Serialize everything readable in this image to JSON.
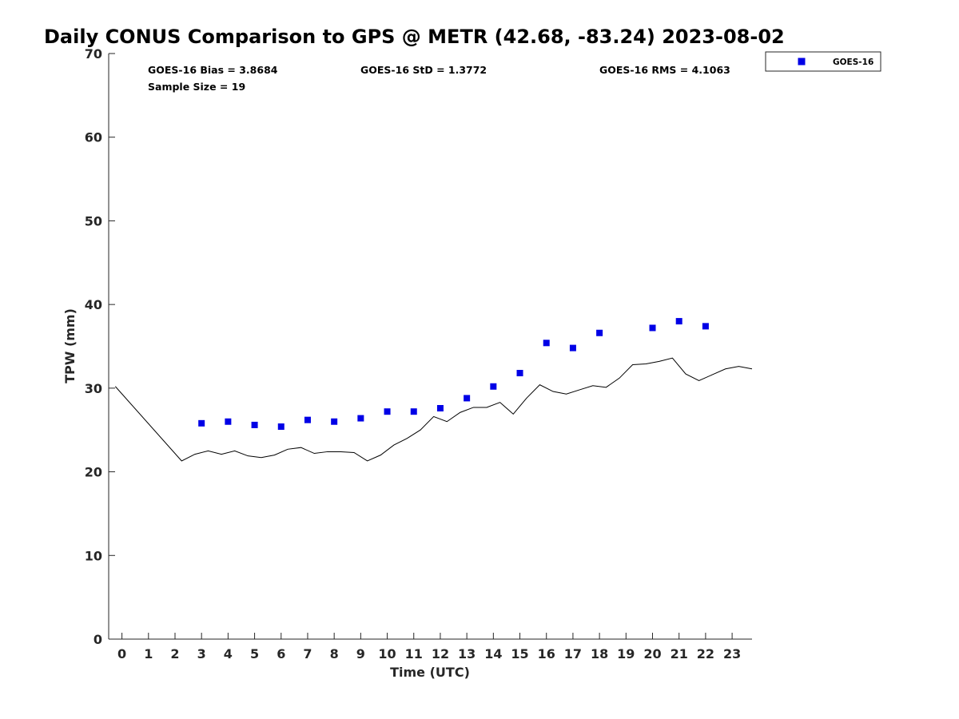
{
  "chart_data": {
    "type": "scatter",
    "title": "Daily CONUS Comparison to GPS @ METR (42.68, -83.24) 2023-08-02",
    "xlabel": "Time (UTC)",
    "ylabel": "TPW (mm)",
    "xlim": [
      -0.5,
      23.75
    ],
    "ylim": [
      0,
      70
    ],
    "x_ticks": [
      0,
      1,
      2,
      3,
      4,
      5,
      6,
      7,
      8,
      9,
      10,
      11,
      12,
      13,
      14,
      15,
      16,
      17,
      18,
      19,
      20,
      21,
      22,
      23
    ],
    "y_ticks": [
      0,
      10,
      20,
      30,
      40,
      50,
      60,
      70
    ],
    "grid": false,
    "legend_position": "top-right-outside",
    "stats": {
      "bias": "GOES-16 Bias = 3.8684",
      "std": "GOES-16 StD = 1.3772",
      "rms": "GOES-16 RMS = 4.1063",
      "sample": "Sample Size = 19"
    },
    "series": [
      {
        "name": "GOES-16",
        "kind": "scatter",
        "marker": "square",
        "color": "#0000e6",
        "points": [
          [
            3.0,
            25.8
          ],
          [
            4.0,
            26.0
          ],
          [
            5.0,
            25.6
          ],
          [
            6.0,
            25.4
          ],
          [
            7.0,
            26.2
          ],
          [
            8.0,
            26.0
          ],
          [
            9.0,
            26.4
          ],
          [
            10.0,
            27.2
          ],
          [
            11.0,
            27.2
          ],
          [
            12.0,
            27.6
          ],
          [
            13.0,
            28.8
          ],
          [
            14.0,
            30.2
          ],
          [
            15.0,
            31.8
          ],
          [
            16.0,
            35.4
          ],
          [
            17.0,
            34.8
          ],
          [
            18.0,
            36.6
          ],
          [
            20.0,
            37.2
          ],
          [
            21.0,
            38.0
          ],
          [
            22.0,
            37.4
          ]
        ]
      },
      {
        "kind": "line",
        "color": "#000000",
        "points": [
          [
            -0.25,
            30.2
          ],
          [
            2.25,
            21.3
          ],
          [
            2.75,
            22.1
          ],
          [
            3.25,
            22.5
          ],
          [
            3.75,
            22.1
          ],
          [
            4.25,
            22.5
          ],
          [
            4.75,
            21.9
          ],
          [
            5.25,
            21.7
          ],
          [
            5.75,
            22.0
          ],
          [
            6.25,
            22.7
          ],
          [
            6.75,
            22.9
          ],
          [
            7.25,
            22.2
          ],
          [
            7.75,
            22.4
          ],
          [
            8.25,
            22.4
          ],
          [
            8.75,
            22.3
          ],
          [
            9.25,
            21.3
          ],
          [
            9.75,
            22.0
          ],
          [
            10.25,
            23.2
          ],
          [
            10.75,
            24.0
          ],
          [
            11.25,
            25.0
          ],
          [
            11.75,
            26.6
          ],
          [
            12.25,
            26.0
          ],
          [
            12.75,
            27.1
          ],
          [
            13.25,
            27.7
          ],
          [
            13.75,
            27.7
          ],
          [
            14.25,
            28.3
          ],
          [
            14.75,
            26.9
          ],
          [
            15.25,
            28.8
          ],
          [
            15.75,
            30.4
          ],
          [
            16.25,
            29.6
          ],
          [
            16.75,
            29.3
          ],
          [
            17.25,
            29.8
          ],
          [
            17.75,
            30.3
          ],
          [
            18.25,
            30.1
          ],
          [
            18.75,
            31.2
          ],
          [
            19.25,
            32.8
          ],
          [
            19.75,
            32.9
          ],
          [
            20.25,
            33.2
          ],
          [
            20.75,
            33.6
          ],
          [
            21.25,
            31.7
          ],
          [
            21.75,
            30.9
          ],
          [
            22.25,
            31.6
          ],
          [
            22.75,
            32.3
          ],
          [
            23.25,
            32.6
          ],
          [
            23.75,
            32.3
          ]
        ]
      }
    ]
  }
}
